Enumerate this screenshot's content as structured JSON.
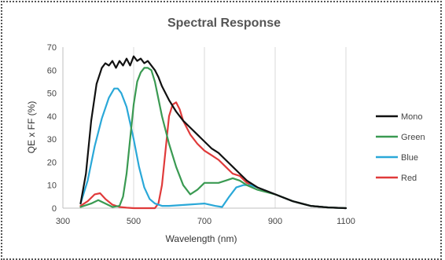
{
  "chart_data": {
    "type": "line",
    "title": "Spectral Response",
    "xlabel": "Wavelength (nm)",
    "ylabel": "QE x FF (%)",
    "xlim": [
      300,
      1100
    ],
    "ylim": [
      0,
      70
    ],
    "xticks": [
      "300",
      "500",
      "700",
      "900",
      "1100"
    ],
    "yticks": [
      "0",
      "10",
      "20",
      "30",
      "40",
      "50",
      "60",
      "70"
    ],
    "grid": "vertical",
    "legend_position": "right",
    "series": [
      {
        "name": "Mono",
        "color": "#111111",
        "x": [
          350,
          365,
          380,
          395,
          410,
          420,
          430,
          440,
          450,
          460,
          470,
          480,
          490,
          500,
          510,
          520,
          530,
          540,
          550,
          560,
          570,
          580,
          600,
          620,
          640,
          660,
          680,
          700,
          720,
          740,
          760,
          780,
          800,
          820,
          850,
          900,
          950,
          1000,
          1050,
          1100
        ],
        "y": [
          2,
          15,
          38,
          54,
          61,
          63,
          62,
          64,
          61,
          64,
          62,
          65,
          62,
          66,
          64,
          65,
          63,
          64,
          62,
          60,
          57,
          53,
          47,
          42,
          38,
          35,
          32,
          29,
          26,
          24,
          21,
          18,
          15,
          12,
          9,
          6,
          3,
          1,
          0.3,
          0
        ]
      },
      {
        "name": "Green",
        "color": "#3a9a52",
        "x": [
          350,
          380,
          400,
          420,
          440,
          460,
          470,
          480,
          490,
          500,
          510,
          520,
          530,
          540,
          550,
          560,
          580,
          600,
          620,
          640,
          660,
          680,
          700,
          720,
          740,
          760,
          780,
          800,
          820,
          850,
          900,
          950,
          1000,
          1050,
          1100
        ],
        "y": [
          0.5,
          2,
          3.5,
          2,
          0.5,
          1,
          5,
          15,
          30,
          45,
          55,
          59,
          61,
          61,
          60,
          55,
          40,
          28,
          18,
          10,
          6,
          8,
          11,
          11,
          11,
          12,
          13,
          12,
          10,
          8,
          6,
          3,
          1,
          0.3,
          0
        ]
      },
      {
        "name": "Blue",
        "color": "#2aa8d8",
        "x": [
          350,
          370,
          390,
          410,
          430,
          445,
          455,
          465,
          480,
          500,
          515,
          530,
          545,
          560,
          580,
          600,
          650,
          700,
          730,
          750,
          770,
          790,
          810,
          830,
          850,
          900,
          950,
          1000,
          1050,
          1100
        ],
        "y": [
          2,
          12,
          27,
          39,
          48,
          52,
          52,
          50,
          44,
          30,
          18,
          9,
          4,
          2,
          1,
          1,
          1.5,
          2,
          1,
          0.5,
          5,
          9,
          10,
          10,
          9,
          6,
          3,
          1,
          0.3,
          0
        ]
      },
      {
        "name": "Red",
        "color": "#e03a3a",
        "x": [
          350,
          370,
          390,
          405,
          420,
          440,
          460,
          480,
          500,
          520,
          540,
          560,
          570,
          580,
          590,
          600,
          610,
          620,
          630,
          640,
          660,
          680,
          700,
          720,
          740,
          760,
          780,
          800,
          820,
          850,
          900,
          950,
          1000,
          1050,
          1100
        ],
        "y": [
          1,
          3,
          6,
          6.5,
          4,
          1.5,
          0.5,
          0.2,
          0,
          0,
          0,
          0,
          2,
          10,
          25,
          40,
          45,
          46,
          43,
          38,
          32,
          28,
          25,
          23,
          21,
          18,
          15,
          14,
          11,
          9,
          6,
          3,
          1,
          0.3,
          0
        ]
      }
    ]
  }
}
